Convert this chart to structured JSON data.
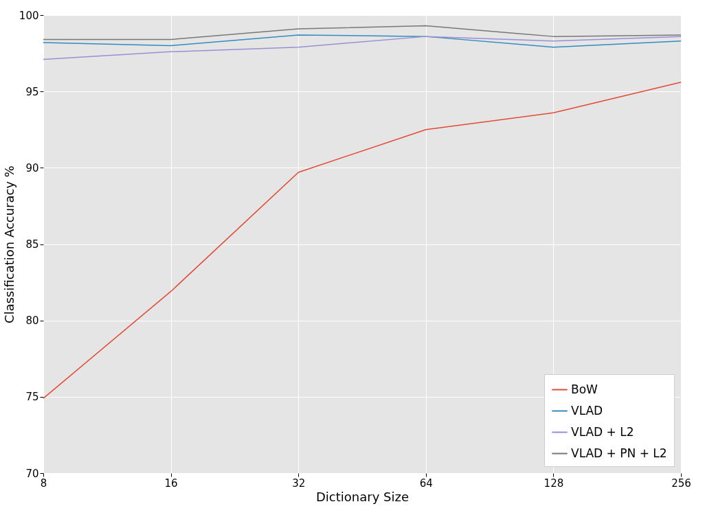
{
  "chart_data": {
    "type": "line",
    "xlabel": "Dictionary Size",
    "ylabel": "Classification Accuracy %",
    "x": [
      8,
      16,
      32,
      64,
      128,
      256
    ],
    "series": [
      {
        "name": "BoW",
        "color": "#e24a33",
        "values": [
          74.9,
          81.9,
          89.7,
          92.5,
          93.6,
          95.6
        ]
      },
      {
        "name": "VLAD",
        "color": "#348abd",
        "values": [
          98.2,
          98.0,
          98.7,
          98.6,
          97.9,
          98.3
        ]
      },
      {
        "name": "VLAD + L2",
        "color": "#988ed5",
        "values": [
          97.1,
          97.6,
          97.9,
          98.6,
          98.3,
          98.6
        ]
      },
      {
        "name": "VLAD + PN + L2",
        "color": "#777777",
        "values": [
          98.4,
          98.4,
          99.1,
          99.3,
          98.6,
          98.7
        ]
      }
    ],
    "xlim": [
      8,
      256
    ],
    "xticks": [
      8,
      16,
      32,
      64,
      128,
      256
    ],
    "log": "x",
    "ylim": [
      70,
      100
    ],
    "yticks": [
      70,
      75,
      80,
      85,
      90,
      95,
      100
    ],
    "grid": true,
    "legend": "bottom right",
    "marker": "none",
    "line_style": "solid"
  }
}
